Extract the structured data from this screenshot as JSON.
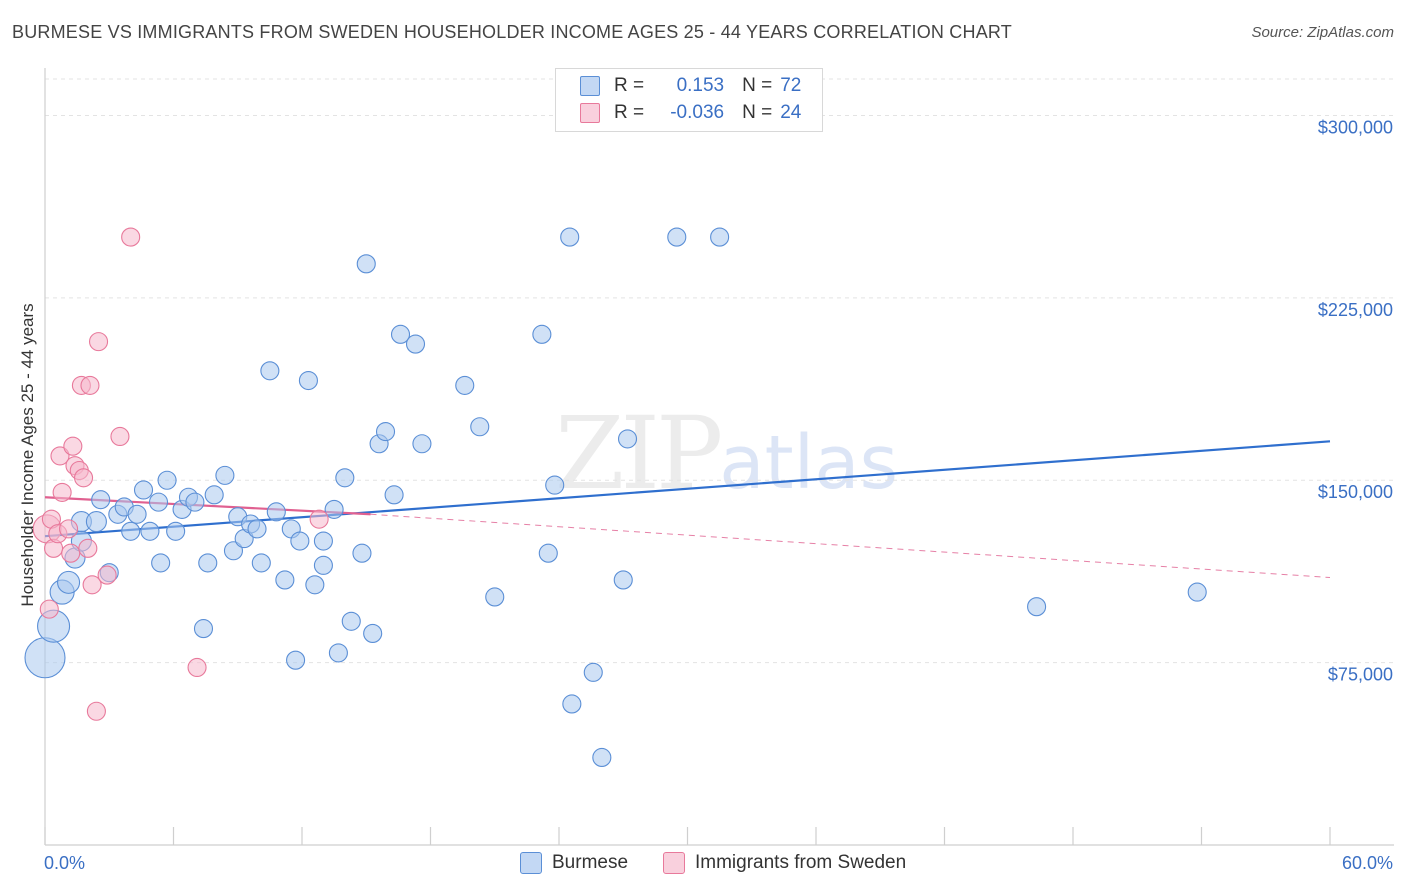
{
  "title": "BURMESE VS IMMIGRANTS FROM SWEDEN HOUSEHOLDER INCOME AGES 25 - 44 YEARS CORRELATION CHART",
  "source": "Source: ZipAtlas.com",
  "legend": {
    "rows": [
      {
        "r_label": "R =",
        "r_value": "0.153",
        "n_label": "N =",
        "n_value": "72"
      },
      {
        "r_label": "R =",
        "r_value": "-0.036",
        "n_label": "N =",
        "n_value": "24"
      }
    ]
  },
  "watermark": {
    "zip": "ZIP",
    "atlas": "atlas"
  },
  "colors": {
    "burmese_fill": "#aac8ee",
    "burmese_stroke": "#5b8fd6",
    "burmese_line": "#2f6fce",
    "sweden_fill": "#f6b8cc",
    "sweden_stroke": "#e8799b",
    "sweden_line": "#e06090",
    "tick_text": "#3a6fc4",
    "grid": "#e3e3e3"
  },
  "chart_data": {
    "type": "scatter",
    "title": "BURMESE VS IMMIGRANTS FROM SWEDEN HOUSEHOLDER INCOME AGES 25 - 44 YEARS CORRELATION CHART",
    "xlabel": "",
    "ylabel": "Householder Income Ages 25 - 44 years",
    "xlim": [
      0,
      60
    ],
    "ylim": [
      0,
      315000
    ],
    "x_tick_labels": [
      "0.0%",
      "60.0%"
    ],
    "y_ticks": [
      75000,
      150000,
      225000,
      300000
    ],
    "y_tick_labels": [
      "$75,000",
      "$150,000",
      "$225,000",
      "$300,000"
    ],
    "grid": true,
    "legend_position": "top-center",
    "series": [
      {
        "name": "Burmese",
        "r": 0.153,
        "n": 72,
        "trend": {
          "x": [
            0,
            60
          ],
          "y": [
            127000,
            166000
          ],
          "style": "solid"
        },
        "points": [
          {
            "x": 0.0,
            "y": 77000,
            "s": 20
          },
          {
            "x": 0.4,
            "y": 90000,
            "s": 16
          },
          {
            "x": 0.8,
            "y": 104000,
            "s": 12
          },
          {
            "x": 1.1,
            "y": 108000,
            "s": 11
          },
          {
            "x": 1.4,
            "y": 118000,
            "s": 10
          },
          {
            "x": 1.7,
            "y": 125000,
            "s": 10
          },
          {
            "x": 1.7,
            "y": 133000,
            "s": 10
          },
          {
            "x": 2.4,
            "y": 133000,
            "s": 10
          },
          {
            "x": 2.6,
            "y": 142000,
            "s": 9
          },
          {
            "x": 3.0,
            "y": 112000,
            "s": 9
          },
          {
            "x": 3.4,
            "y": 136000,
            "s": 9
          },
          {
            "x": 3.7,
            "y": 139000,
            "s": 9
          },
          {
            "x": 4.0,
            "y": 129000,
            "s": 9
          },
          {
            "x": 4.3,
            "y": 136000,
            "s": 9
          },
          {
            "x": 4.6,
            "y": 146000,
            "s": 9
          },
          {
            "x": 4.9,
            "y": 129000,
            "s": 9
          },
          {
            "x": 5.3,
            "y": 141000,
            "s": 9
          },
          {
            "x": 5.4,
            "y": 116000,
            "s": 9
          },
          {
            "x": 5.7,
            "y": 150000,
            "s": 9
          },
          {
            "x": 6.1,
            "y": 129000,
            "s": 9
          },
          {
            "x": 6.4,
            "y": 138000,
            "s": 9
          },
          {
            "x": 6.7,
            "y": 143000,
            "s": 9
          },
          {
            "x": 7.0,
            "y": 141000,
            "s": 9
          },
          {
            "x": 7.4,
            "y": 89000,
            "s": 9
          },
          {
            "x": 7.6,
            "y": 116000,
            "s": 9
          },
          {
            "x": 7.9,
            "y": 144000,
            "s": 9
          },
          {
            "x": 8.4,
            "y": 152000,
            "s": 9
          },
          {
            "x": 8.8,
            "y": 121000,
            "s": 9
          },
          {
            "x": 9.0,
            "y": 135000,
            "s": 9
          },
          {
            "x": 9.3,
            "y": 126000,
            "s": 9
          },
          {
            "x": 9.6,
            "y": 132000,
            "s": 9
          },
          {
            "x": 9.9,
            "y": 130000,
            "s": 9
          },
          {
            "x": 10.1,
            "y": 116000,
            "s": 9
          },
          {
            "x": 10.5,
            "y": 195000,
            "s": 9
          },
          {
            "x": 10.8,
            "y": 137000,
            "s": 9
          },
          {
            "x": 11.2,
            "y": 109000,
            "s": 9
          },
          {
            "x": 11.5,
            "y": 130000,
            "s": 9
          },
          {
            "x": 11.7,
            "y": 76000,
            "s": 9
          },
          {
            "x": 11.9,
            "y": 125000,
            "s": 9
          },
          {
            "x": 12.3,
            "y": 191000,
            "s": 9
          },
          {
            "x": 12.6,
            "y": 107000,
            "s": 9
          },
          {
            "x": 13.0,
            "y": 115000,
            "s": 9
          },
          {
            "x": 13.0,
            "y": 125000,
            "s": 9
          },
          {
            "x": 13.5,
            "y": 138000,
            "s": 9
          },
          {
            "x": 13.7,
            "y": 79000,
            "s": 9
          },
          {
            "x": 14.0,
            "y": 151000,
            "s": 9
          },
          {
            "x": 14.3,
            "y": 92000,
            "s": 9
          },
          {
            "x": 14.8,
            "y": 120000,
            "s": 9
          },
          {
            "x": 15.0,
            "y": 239000,
            "s": 9
          },
          {
            "x": 15.3,
            "y": 87000,
            "s": 9
          },
          {
            "x": 15.6,
            "y": 165000,
            "s": 9
          },
          {
            "x": 15.9,
            "y": 170000,
            "s": 9
          },
          {
            "x": 16.3,
            "y": 144000,
            "s": 9
          },
          {
            "x": 16.6,
            "y": 210000,
            "s": 9
          },
          {
            "x": 17.3,
            "y": 206000,
            "s": 9
          },
          {
            "x": 17.6,
            "y": 165000,
            "s": 9
          },
          {
            "x": 19.6,
            "y": 189000,
            "s": 9
          },
          {
            "x": 20.3,
            "y": 172000,
            "s": 9
          },
          {
            "x": 21.0,
            "y": 102000,
            "s": 9
          },
          {
            "x": 23.2,
            "y": 210000,
            "s": 9
          },
          {
            "x": 23.5,
            "y": 120000,
            "s": 9
          },
          {
            "x": 23.8,
            "y": 148000,
            "s": 9
          },
          {
            "x": 24.5,
            "y": 250000,
            "s": 9
          },
          {
            "x": 24.6,
            "y": 58000,
            "s": 9
          },
          {
            "x": 25.6,
            "y": 71000,
            "s": 9
          },
          {
            "x": 26.0,
            "y": 36000,
            "s": 9
          },
          {
            "x": 27.0,
            "y": 109000,
            "s": 9
          },
          {
            "x": 27.2,
            "y": 167000,
            "s": 9
          },
          {
            "x": 29.5,
            "y": 250000,
            "s": 9
          },
          {
            "x": 31.5,
            "y": 250000,
            "s": 9
          },
          {
            "x": 46.3,
            "y": 98000,
            "s": 9
          },
          {
            "x": 53.8,
            "y": 104000,
            "s": 9
          }
        ]
      },
      {
        "name": "Immigrants from Sweden",
        "r": -0.036,
        "n": 24,
        "trend": {
          "x": [
            0,
            15.2
          ],
          "y": [
            143000,
            136000
          ],
          "style": "solid"
        },
        "trend_extension": {
          "x": [
            15.2,
            60
          ],
          "y": [
            136000,
            110000
          ],
          "style": "dashed"
        },
        "points": [
          {
            "x": 0.1,
            "y": 130000,
            "s": 14
          },
          {
            "x": 0.3,
            "y": 134000,
            "s": 9
          },
          {
            "x": 0.4,
            "y": 122000,
            "s": 9
          },
          {
            "x": 0.6,
            "y": 128000,
            "s": 9
          },
          {
            "x": 0.7,
            "y": 160000,
            "s": 9
          },
          {
            "x": 0.8,
            "y": 145000,
            "s": 9
          },
          {
            "x": 1.1,
            "y": 130000,
            "s": 9
          },
          {
            "x": 1.2,
            "y": 120000,
            "s": 9
          },
          {
            "x": 1.3,
            "y": 164000,
            "s": 9
          },
          {
            "x": 1.4,
            "y": 156000,
            "s": 9
          },
          {
            "x": 1.6,
            "y": 154000,
            "s": 9
          },
          {
            "x": 1.7,
            "y": 189000,
            "s": 9
          },
          {
            "x": 1.8,
            "y": 151000,
            "s": 9
          },
          {
            "x": 2.0,
            "y": 122000,
            "s": 9
          },
          {
            "x": 2.1,
            "y": 189000,
            "s": 9
          },
          {
            "x": 2.2,
            "y": 107000,
            "s": 9
          },
          {
            "x": 2.4,
            "y": 55000,
            "s": 9
          },
          {
            "x": 2.5,
            "y": 207000,
            "s": 9
          },
          {
            "x": 2.9,
            "y": 111000,
            "s": 9
          },
          {
            "x": 3.5,
            "y": 168000,
            "s": 9
          },
          {
            "x": 4.0,
            "y": 250000,
            "s": 9
          },
          {
            "x": 7.1,
            "y": 73000,
            "s": 9
          },
          {
            "x": 12.8,
            "y": 134000,
            "s": 9
          },
          {
            "x": 0.2,
            "y": 97000,
            "s": 9
          }
        ]
      }
    ]
  },
  "bottom_legend": {
    "items": [
      {
        "label": "Burmese"
      },
      {
        "label": "Immigrants from Sweden"
      }
    ]
  }
}
